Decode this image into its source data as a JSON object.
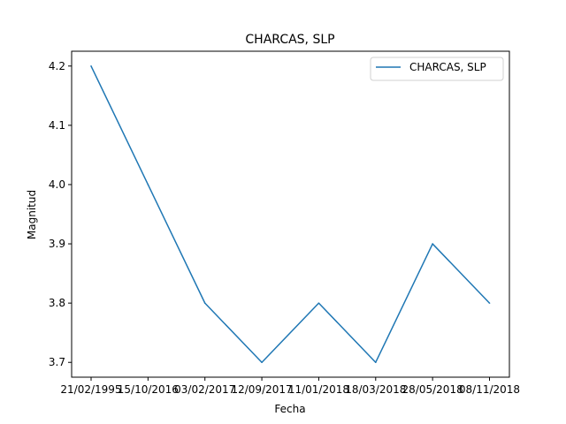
{
  "chart_data": {
    "type": "line",
    "title": "CHARCAS, SLP",
    "xlabel": "Fecha",
    "ylabel": "Magnitud",
    "categories": [
      "21/02/1995",
      "15/10/2016",
      "03/02/2017",
      "12/09/2017",
      "11/01/2018",
      "18/03/2018",
      "28/05/2018",
      "08/11/2018"
    ],
    "series": [
      {
        "name": "CHARCAS, SLP",
        "values": [
          4.2,
          4.0,
          3.8,
          3.7,
          3.8,
          3.7,
          3.9,
          3.8
        ],
        "color": "#1f77b4"
      }
    ],
    "ylim": [
      3.675,
      4.225
    ],
    "yticks": [
      3.7,
      3.8,
      3.9,
      4.0,
      4.1,
      4.2
    ],
    "ytick_labels": [
      "3.7",
      "3.8",
      "3.9",
      "4.0",
      "4.1",
      "4.2"
    ],
    "grid": false,
    "legend_position": "top-right"
  }
}
